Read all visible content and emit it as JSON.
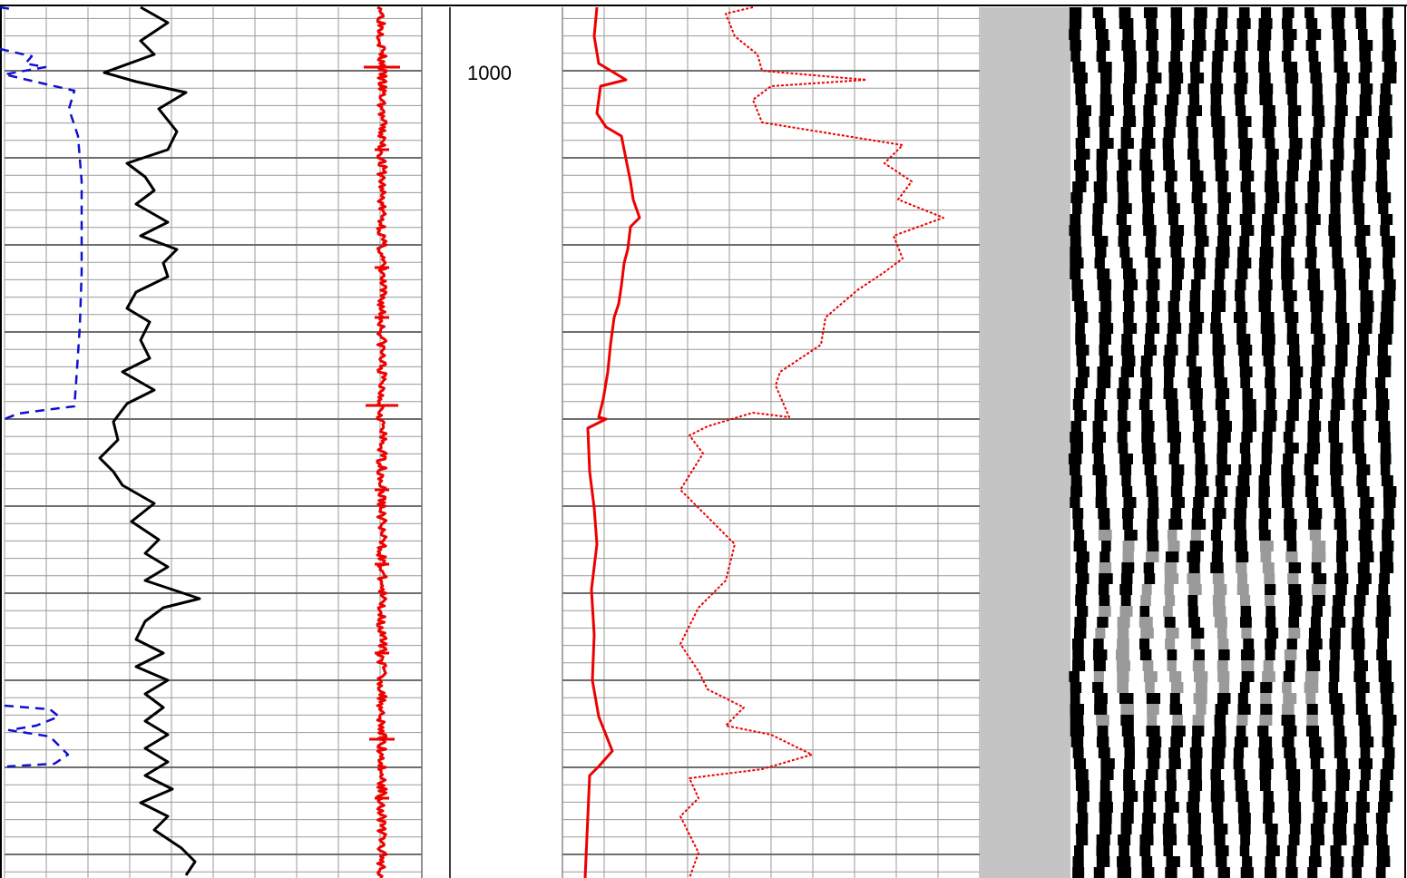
{
  "chart_data": {
    "type": "line",
    "title": "",
    "depth_labels": [
      "1000"
    ],
    "colors": {
      "grid_minor": "#9a9a9a",
      "grid_major": "#6e6e6e",
      "track1_dashed": "#1010d0",
      "track1_solid": "#000000",
      "track2_noise": "#ee0000",
      "track3_solid": "#ee0000",
      "track3_dotted": "#ee0000",
      "image_gray": "#c4c4c4",
      "image_dark": "#000000",
      "image_light": "#ffffff"
    },
    "series": [
      {
        "track": 1,
        "style": "dashed",
        "segments": [
          [
            [
              0,
              8
            ],
            [
              12,
              10
            ]
          ],
          [
            [
              0,
              54
            ],
            [
              35,
              62
            ],
            [
              28,
              70
            ],
            [
              50,
              74
            ],
            [
              5,
              82
            ],
            [
              30,
              88
            ],
            [
              82,
              100
            ],
            [
              76,
              120
            ],
            [
              86,
              150
            ],
            [
              90,
              200
            ],
            [
              90,
              300
            ],
            [
              88,
              360
            ],
            [
              84,
              420
            ],
            [
              82,
              448
            ],
            [
              50,
              452
            ],
            [
              20,
              456
            ],
            [
              5,
              462
            ]
          ],
          [
            [
              5,
              778
            ],
            [
              55,
              782
            ],
            [
              65,
              790
            ],
            [
              40,
              800
            ],
            [
              10,
              805
            ],
            [
              55,
              812
            ],
            [
              75,
              832
            ],
            [
              60,
              842
            ],
            [
              8,
              845
            ]
          ]
        ]
      },
      {
        "track": 1,
        "style": "solid",
        "points": [
          [
            155,
            8
          ],
          [
            185,
            25
          ],
          [
            155,
            45
          ],
          [
            170,
            60
          ],
          [
            115,
            80
          ],
          [
            150,
            90
          ],
          [
            205,
            102
          ],
          [
            175,
            120
          ],
          [
            195,
            145
          ],
          [
            185,
            165
          ],
          [
            140,
            180
          ],
          [
            160,
            195
          ],
          [
            170,
            210
          ],
          [
            150,
            225
          ],
          [
            185,
            245
          ],
          [
            155,
            260
          ],
          [
            195,
            275
          ],
          [
            180,
            290
          ],
          [
            185,
            305
          ],
          [
            150,
            322
          ],
          [
            140,
            340
          ],
          [
            165,
            355
          ],
          [
            155,
            375
          ],
          [
            165,
            395
          ],
          [
            135,
            410
          ],
          [
            170,
            430
          ],
          [
            140,
            445
          ],
          [
            125,
            465
          ],
          [
            130,
            485
          ],
          [
            110,
            505
          ],
          [
            125,
            520
          ],
          [
            135,
            535
          ],
          [
            170,
            555
          ],
          [
            145,
            575
          ],
          [
            175,
            595
          ],
          [
            160,
            610
          ],
          [
            185,
            625
          ],
          [
            160,
            640
          ],
          [
            220,
            660
          ],
          [
            180,
            670
          ],
          [
            160,
            685
          ],
          [
            150,
            705
          ],
          [
            180,
            720
          ],
          [
            150,
            735
          ],
          [
            185,
            750
          ],
          [
            160,
            765
          ],
          [
            180,
            780
          ],
          [
            160,
            795
          ],
          [
            185,
            810
          ],
          [
            160,
            825
          ],
          [
            185,
            840
          ],
          [
            160,
            855
          ],
          [
            190,
            870
          ],
          [
            155,
            885
          ],
          [
            185,
            900
          ],
          [
            170,
            915
          ],
          [
            200,
            935
          ],
          [
            215,
            950
          ],
          [
            205,
            965
          ]
        ]
      },
      {
        "track": 2,
        "style": "noise",
        "center": 421,
        "amplitude": 5,
        "spikes": [
          [
            74,
            20
          ],
          [
            447,
            18
          ],
          [
            815,
            14
          ],
          [
            165,
            8
          ],
          [
            295,
            8
          ],
          [
            540,
            8
          ],
          [
            622,
            8
          ],
          [
            880,
            8
          ],
          [
            720,
            8
          ],
          [
            350,
            8
          ]
        ]
      },
      {
        "track": 3,
        "style": "solid",
        "points": [
          [
            658,
            8
          ],
          [
            655,
            40
          ],
          [
            660,
            70
          ],
          [
            690,
            88
          ],
          [
            662,
            95
          ],
          [
            658,
            125
          ],
          [
            668,
            140
          ],
          [
            685,
            150
          ],
          [
            690,
            175
          ],
          [
            695,
            200
          ],
          [
            698,
            220
          ],
          [
            705,
            240
          ],
          [
            695,
            250
          ],
          [
            692,
            275
          ],
          [
            688,
            290
          ],
          [
            685,
            315
          ],
          [
            682,
            335
          ],
          [
            677,
            350
          ],
          [
            673,
            380
          ],
          [
            670,
            410
          ],
          [
            665,
            440
          ],
          [
            660,
            460
          ],
          [
            668,
            462
          ],
          [
            648,
            472
          ],
          [
            650,
            520
          ],
          [
            655,
            560
          ],
          [
            658,
            600
          ],
          [
            652,
            650
          ],
          [
            655,
            700
          ],
          [
            653,
            750
          ],
          [
            660,
            790
          ],
          [
            675,
            828
          ],
          [
            660,
            845
          ],
          [
            650,
            855
          ],
          [
            648,
            900
          ],
          [
            645,
            968
          ]
        ]
      },
      {
        "track": 3,
        "style": "dotted",
        "points": [
          [
            830,
            8
          ],
          [
            800,
            15
          ],
          [
            810,
            40
          ],
          [
            835,
            60
          ],
          [
            840,
            78
          ],
          [
            955,
            88
          ],
          [
            850,
            95
          ],
          [
            830,
            110
          ],
          [
            840,
            135
          ],
          [
            995,
            160
          ],
          [
            975,
            180
          ],
          [
            1005,
            200
          ],
          [
            990,
            220
          ],
          [
            1040,
            240
          ],
          [
            985,
            260
          ],
          [
            995,
            285
          ],
          [
            975,
            300
          ],
          [
            945,
            320
          ],
          [
            910,
            350
          ],
          [
            905,
            380
          ],
          [
            890,
            390
          ],
          [
            860,
            410
          ],
          [
            855,
            425
          ],
          [
            870,
            460
          ],
          [
            830,
            455
          ],
          [
            780,
            470
          ],
          [
            760,
            480
          ],
          [
            775,
            500
          ],
          [
            750,
            540
          ],
          [
            780,
            570
          ],
          [
            800,
            590
          ],
          [
            810,
            600
          ],
          [
            800,
            640
          ],
          [
            770,
            670
          ],
          [
            750,
            710
          ],
          [
            770,
            740
          ],
          [
            780,
            760
          ],
          [
            820,
            780
          ],
          [
            800,
            800
          ],
          [
            850,
            810
          ],
          [
            895,
            832
          ],
          [
            840,
            848
          ],
          [
            760,
            858
          ],
          [
            770,
            880
          ],
          [
            750,
            900
          ],
          [
            770,
            940
          ],
          [
            760,
            968
          ]
        ]
      }
    ]
  }
}
